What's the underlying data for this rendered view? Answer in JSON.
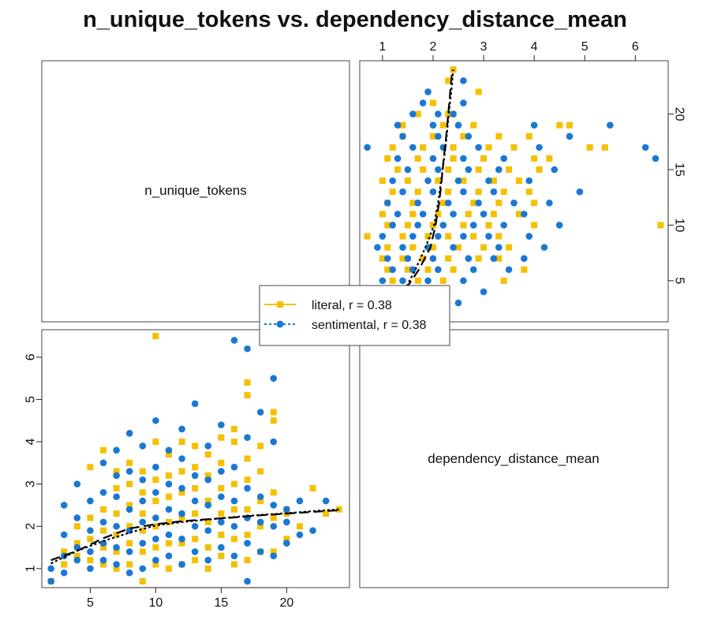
{
  "chart_data": {
    "type": "scatter",
    "title": "n_unique_tokens vs. dependency_distance_mean",
    "variables": [
      "n_unique_tokens",
      "dependency_distance_mean"
    ],
    "grid": false,
    "legend_position": "center",
    "series": [
      {
        "name": "literal, r = 0.38",
        "color": "#F5C000",
        "marker": "square",
        "line_style": "dashed",
        "points": [
          [
            2,
            0.7
          ],
          [
            3,
            1.1
          ],
          [
            3,
            1.4
          ],
          [
            4,
            1.3
          ],
          [
            4,
            1.6
          ],
          [
            4,
            2.0
          ],
          [
            5,
            1.2
          ],
          [
            5,
            1.7
          ],
          [
            5,
            2.2
          ],
          [
            5,
            3.4
          ],
          [
            6,
            1.1
          ],
          [
            6,
            1.5
          ],
          [
            6,
            1.9
          ],
          [
            6,
            2.4
          ],
          [
            6,
            3.8
          ],
          [
            7,
            1.0
          ],
          [
            7,
            1.4
          ],
          [
            7,
            1.8
          ],
          [
            7,
            2.3
          ],
          [
            7,
            2.9
          ],
          [
            7,
            3.3
          ],
          [
            8,
            1.1
          ],
          [
            8,
            1.6
          ],
          [
            8,
            2.0
          ],
          [
            8,
            2.5
          ],
          [
            8,
            3.0
          ],
          [
            8,
            3.5
          ],
          [
            9,
            0.7
          ],
          [
            9,
            1.4
          ],
          [
            9,
            1.9
          ],
          [
            9,
            2.3
          ],
          [
            9,
            2.8
          ],
          [
            9,
            3.3
          ],
          [
            10,
            1.1
          ],
          [
            10,
            1.5
          ],
          [
            10,
            2.0
          ],
          [
            10,
            2.6
          ],
          [
            10,
            3.1
          ],
          [
            10,
            4.0
          ],
          [
            10,
            6.5
          ],
          [
            11,
            1.0
          ],
          [
            11,
            1.6
          ],
          [
            11,
            2.1
          ],
          [
            11,
            2.7
          ],
          [
            11,
            3.2
          ],
          [
            11,
            3.7
          ],
          [
            12,
            1.1
          ],
          [
            12,
            1.6
          ],
          [
            12,
            2.2
          ],
          [
            12,
            2.8
          ],
          [
            12,
            3.3
          ],
          [
            12,
            4.0
          ],
          [
            13,
            1.2
          ],
          [
            13,
            1.7
          ],
          [
            13,
            2.3
          ],
          [
            13,
            2.9
          ],
          [
            13,
            3.4
          ],
          [
            13,
            3.9
          ],
          [
            14,
            1.0
          ],
          [
            14,
            1.5
          ],
          [
            14,
            2.1
          ],
          [
            14,
            2.6
          ],
          [
            14,
            3.2
          ],
          [
            14,
            3.7
          ],
          [
            15,
            1.3
          ],
          [
            15,
            1.8
          ],
          [
            15,
            2.3
          ],
          [
            15,
            2.9
          ],
          [
            15,
            3.5
          ],
          [
            15,
            4.1
          ],
          [
            16,
            1.1
          ],
          [
            16,
            1.7
          ],
          [
            16,
            2.4
          ],
          [
            16,
            3.0
          ],
          [
            16,
            4.0
          ],
          [
            16,
            4.3
          ],
          [
            17,
            1.2
          ],
          [
            17,
            1.8
          ],
          [
            17,
            2.4
          ],
          [
            17,
            3.1
          ],
          [
            17,
            3.6
          ],
          [
            17,
            5.1
          ],
          [
            17,
            5.4
          ],
          [
            18,
            1.4
          ],
          [
            18,
            2.0
          ],
          [
            18,
            2.6
          ],
          [
            18,
            3.3
          ],
          [
            18,
            3.9
          ],
          [
            19,
            1.4
          ],
          [
            19,
            2.2
          ],
          [
            19,
            2.8
          ],
          [
            19,
            4.5
          ],
          [
            19,
            4.7
          ],
          [
            20,
            1.7
          ],
          [
            20,
            2.3
          ],
          [
            20,
            2.4
          ],
          [
            21,
            2.0
          ],
          [
            22,
            2.9
          ],
          [
            23,
            2.3
          ],
          [
            24,
            2.4
          ]
        ],
        "trend": [
          [
            2,
            1.2
          ],
          [
            4,
            1.42
          ],
          [
            6,
            1.72
          ],
          [
            8,
            1.95
          ],
          [
            10,
            2.05
          ],
          [
            12,
            2.12
          ],
          [
            14,
            2.17
          ],
          [
            16,
            2.21
          ],
          [
            18,
            2.26
          ],
          [
            20,
            2.3
          ],
          [
            22,
            2.34
          ],
          [
            24,
            2.38
          ]
        ]
      },
      {
        "name": "sentimental, r = 0.38",
        "color": "#1A78D2",
        "marker": "circle",
        "line_style": "dotted",
        "points": [
          [
            2,
            0.7
          ],
          [
            2,
            1.0
          ],
          [
            3,
            0.9
          ],
          [
            3,
            1.3
          ],
          [
            3,
            1.8
          ],
          [
            3,
            2.5
          ],
          [
            4,
            1.2
          ],
          [
            4,
            1.5
          ],
          [
            4,
            2.2
          ],
          [
            4,
            3.0
          ],
          [
            5,
            1.0
          ],
          [
            5,
            1.4
          ],
          [
            5,
            1.9
          ],
          [
            5,
            2.6
          ],
          [
            6,
            1.2
          ],
          [
            6,
            1.6
          ],
          [
            6,
            2.1
          ],
          [
            6,
            2.8
          ],
          [
            6,
            3.5
          ],
          [
            7,
            1.1
          ],
          [
            7,
            1.5
          ],
          [
            7,
            2.0
          ],
          [
            7,
            2.7
          ],
          [
            7,
            3.2
          ],
          [
            7,
            3.8
          ],
          [
            8,
            0.9
          ],
          [
            8,
            1.4
          ],
          [
            8,
            1.9
          ],
          [
            8,
            2.4
          ],
          [
            8,
            3.3
          ],
          [
            8,
            4.2
          ],
          [
            9,
            1.0
          ],
          [
            9,
            1.6
          ],
          [
            9,
            2.1
          ],
          [
            9,
            2.6
          ],
          [
            9,
            3.1
          ],
          [
            9,
            3.9
          ],
          [
            10,
            1.2
          ],
          [
            10,
            1.7
          ],
          [
            10,
            2.2
          ],
          [
            10,
            2.8
          ],
          [
            10,
            3.4
          ],
          [
            10,
            4.5
          ],
          [
            11,
            1.3
          ],
          [
            11,
            1.8
          ],
          [
            11,
            2.4
          ],
          [
            11,
            3.0
          ],
          [
            11,
            3.8
          ],
          [
            12,
            1.1
          ],
          [
            12,
            1.7
          ],
          [
            12,
            2.3
          ],
          [
            12,
            2.9
          ],
          [
            12,
            3.6
          ],
          [
            12,
            4.3
          ],
          [
            13,
            1.4
          ],
          [
            13,
            2.0
          ],
          [
            13,
            2.6
          ],
          [
            13,
            3.2
          ],
          [
            13,
            4.9
          ],
          [
            14,
            1.2
          ],
          [
            14,
            1.9
          ],
          [
            14,
            2.5
          ],
          [
            14,
            3.1
          ],
          [
            14,
            3.9
          ],
          [
            15,
            1.5
          ],
          [
            15,
            2.1
          ],
          [
            15,
            2.7
          ],
          [
            15,
            3.3
          ],
          [
            15,
            4.4
          ],
          [
            16,
            1.3
          ],
          [
            16,
            2.0
          ],
          [
            16,
            2.6
          ],
          [
            16,
            3.4
          ],
          [
            16,
            6.4
          ],
          [
            17,
            0.7
          ],
          [
            17,
            1.6
          ],
          [
            17,
            2.2
          ],
          [
            17,
            2.9
          ],
          [
            17,
            4.1
          ],
          [
            17,
            6.2
          ],
          [
            18,
            1.4
          ],
          [
            18,
            2.1
          ],
          [
            18,
            2.7
          ],
          [
            18,
            4.7
          ],
          [
            19,
            1.3
          ],
          [
            19,
            2.0
          ],
          [
            19,
            2.5
          ],
          [
            19,
            4.0
          ],
          [
            19,
            5.5
          ],
          [
            20,
            1.6
          ],
          [
            20,
            2.1
          ],
          [
            20,
            2.4
          ],
          [
            21,
            1.8
          ],
          [
            21,
            2.6
          ],
          [
            22,
            1.9
          ],
          [
            23,
            2.6
          ]
        ],
        "trend": [
          [
            2,
            1.12
          ],
          [
            4,
            1.42
          ],
          [
            6,
            1.65
          ],
          [
            8,
            1.85
          ],
          [
            10,
            2.02
          ],
          [
            12,
            2.1
          ],
          [
            14,
            2.16
          ],
          [
            16,
            2.22
          ],
          [
            18,
            2.27
          ],
          [
            20,
            2.31
          ],
          [
            22,
            2.36
          ],
          [
            24,
            2.4
          ]
        ]
      }
    ],
    "panels": {
      "lower": {
        "x_var": "n_unique_tokens",
        "y_var": "dependency_distance_mean",
        "xlim": [
          1.3,
          24.8
        ],
        "ylim": [
          0.55,
          6.65
        ],
        "xticks": [
          5,
          10,
          15,
          20
        ],
        "yticks": [
          1,
          2,
          3,
          4,
          5,
          6
        ]
      },
      "upper": {
        "x_var": "dependency_distance_mean",
        "y_var": "n_unique_tokens",
        "xlim": [
          0.55,
          6.65
        ],
        "ylim": [
          1.3,
          24.8
        ],
        "xticks": [
          1,
          2,
          3,
          4,
          5,
          6
        ],
        "yticks": [
          5,
          10,
          15,
          20
        ]
      }
    }
  }
}
